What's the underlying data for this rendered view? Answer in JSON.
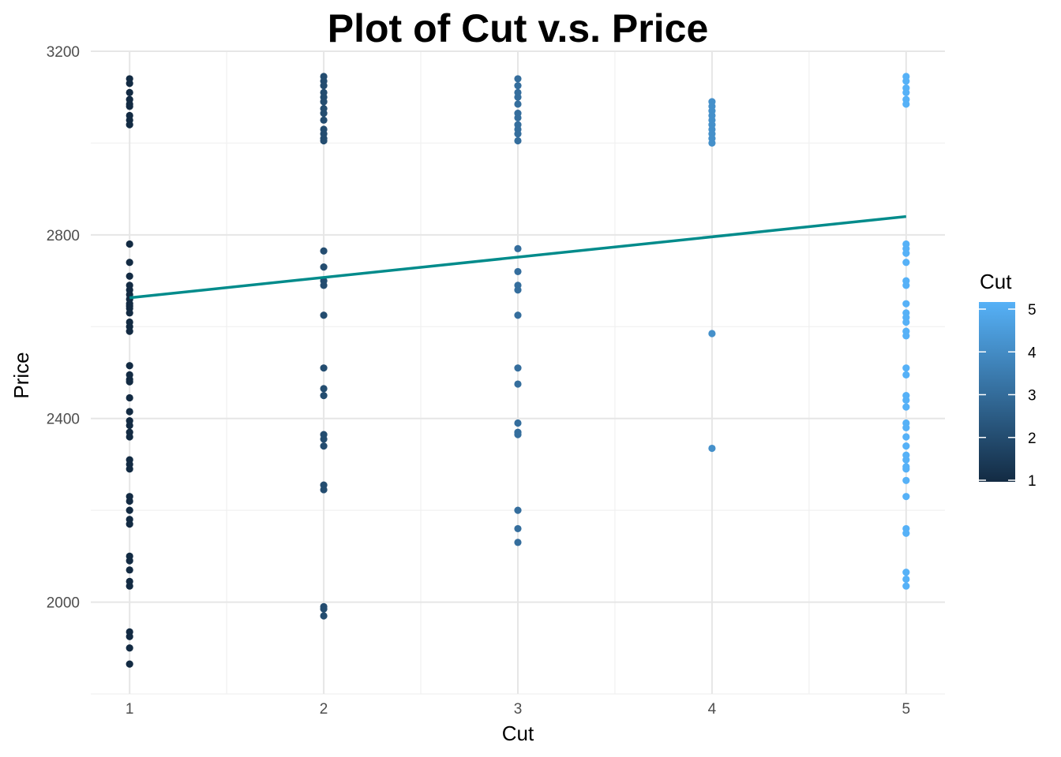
{
  "chart_data": {
    "type": "scatter",
    "title": "Plot of Cut v.s. Price",
    "xlabel": "Cut",
    "ylabel": "Price",
    "xlim": [
      0.8,
      5.2
    ],
    "ylim": [
      1800,
      3200
    ],
    "x_ticks": [
      1,
      2,
      3,
      4,
      5
    ],
    "y_ticks": [
      2000,
      2400,
      2800,
      3200
    ],
    "grid": true,
    "legend": {
      "title": "Cut",
      "type": "colorbar",
      "placement": "right",
      "ticks": [
        1,
        2,
        3,
        4,
        5
      ],
      "color_low": "#132b43",
      "color_high": "#56b1f7"
    },
    "trend_line": {
      "x": [
        1,
        5
      ],
      "y": [
        2663,
        2840
      ],
      "color": "#008b8b"
    },
    "series": [
      {
        "x": 1,
        "values": [
          3140,
          3130,
          3110,
          3095,
          3085,
          3080,
          3060,
          3050,
          3040,
          2780,
          2740,
          2710,
          2690,
          2680,
          2670,
          2660,
          2650,
          2645,
          2640,
          2630,
          2610,
          2600,
          2590,
          2515,
          2495,
          2485,
          2480,
          2445,
          2415,
          2395,
          2385,
          2370,
          2360,
          2310,
          2300,
          2290,
          2230,
          2220,
          2200,
          2180,
          2170,
          2100,
          2090,
          2070,
          2045,
          2035,
          1935,
          1925,
          1900,
          1865
        ]
      },
      {
        "x": 2,
        "values": [
          3145,
          3135,
          3125,
          3110,
          3100,
          3090,
          3075,
          3065,
          3050,
          3030,
          3020,
          3010,
          3005,
          2765,
          2730,
          2700,
          2690,
          2625,
          2510,
          2465,
          2450,
          2365,
          2355,
          2340,
          2255,
          2245,
          1990,
          1985,
          1970
        ]
      },
      {
        "x": 3,
        "values": [
          3140,
          3125,
          3110,
          3100,
          3085,
          3065,
          3055,
          3040,
          3030,
          3020,
          3005,
          2770,
          2720,
          2690,
          2680,
          2625,
          2510,
          2475,
          2390,
          2370,
          2365,
          2200,
          2160,
          2130
        ]
      },
      {
        "x": 4,
        "values": [
          3090,
          3080,
          3070,
          3060,
          3050,
          3040,
          3030,
          3020,
          3010,
          3000,
          2585,
          2335
        ]
      },
      {
        "x": 5,
        "values": [
          3145,
          3135,
          3120,
          3110,
          3095,
          3085,
          2780,
          2770,
          2760,
          2740,
          2700,
          2690,
          2650,
          2630,
          2620,
          2610,
          2590,
          2580,
          2510,
          2495,
          2450,
          2440,
          2425,
          2390,
          2380,
          2360,
          2340,
          2320,
          2310,
          2295,
          2290,
          2265,
          2230,
          2160,
          2150,
          2065,
          2050,
          2035
        ]
      }
    ]
  }
}
